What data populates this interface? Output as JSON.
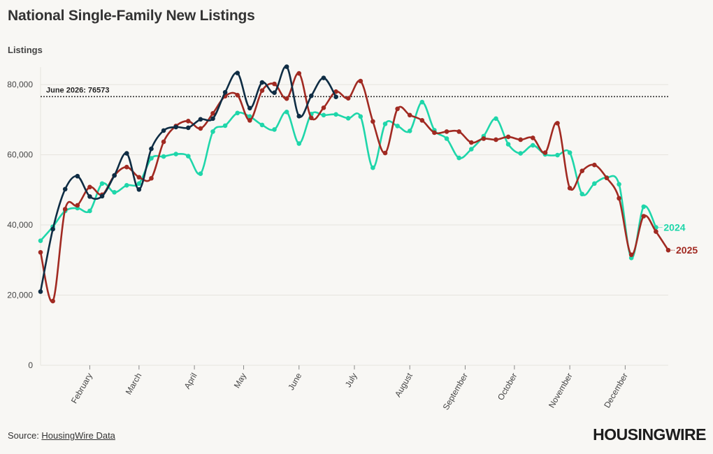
{
  "title": "National Single-Family New Listings",
  "source_prefix": "Source: ",
  "source_link": "HousingWire Data",
  "logo_text": "HOUSINGWIRE",
  "colors": {
    "s2024": "#1fd6aa",
    "s2025": "#a12a22",
    "s2026": "#0f2d44",
    "ref": "#333333",
    "grid": "#e6e4de"
  },
  "chart_data": {
    "type": "line",
    "title": "National Single-Family New Listings",
    "ylabel": "Listings",
    "xlabel": "",
    "ylim": [
      0,
      85000
    ],
    "y_ticks": [
      0,
      20000,
      40000,
      60000,
      80000
    ],
    "y_tick_labels": [
      "0",
      "20,000",
      "40,000",
      "60,000",
      "80,000"
    ],
    "x_range_weeks": [
      1,
      52
    ],
    "month_ticks": [
      {
        "label": "February",
        "week": 5
      },
      {
        "label": "March",
        "week": 9
      },
      {
        "label": "April",
        "week": 13.5
      },
      {
        "label": "May",
        "week": 17.5
      },
      {
        "label": "June",
        "week": 22
      },
      {
        "label": "July",
        "week": 26.5
      },
      {
        "label": "August",
        "week": 31
      },
      {
        "label": "September",
        "week": 35.5
      },
      {
        "label": "October",
        "week": 39.5
      },
      {
        "label": "November",
        "week": 44
      },
      {
        "label": "December",
        "week": 48.5
      }
    ],
    "reference_line": {
      "label": "June 2026: 76573",
      "value": 76573
    },
    "series": [
      {
        "name": "2024",
        "color_key": "s2024",
        "label": "2024",
        "values": [
          35500,
          39500,
          44000,
          44800,
          44000,
          51800,
          49300,
          51300,
          51800,
          59000,
          59500,
          60200,
          59600,
          54600,
          66600,
          68300,
          71900,
          70900,
          68500,
          67200,
          72200,
          63200,
          71600,
          71300,
          71500,
          70400,
          70900,
          56300,
          68800,
          68200,
          66800,
          75000,
          67000,
          64600,
          59100,
          61600,
          65300,
          70300,
          63000,
          60400,
          62700,
          60100,
          59900,
          60600,
          48800,
          51800,
          53500,
          51600,
          30600,
          45200,
          39300
        ],
        "x_start": 1
      },
      {
        "name": "2025",
        "color_key": "s2025",
        "label": "2025",
        "values": [
          32200,
          18300,
          44500,
          45600,
          50800,
          48600,
          54100,
          56500,
          53600,
          53300,
          63700,
          68200,
          69600,
          67500,
          71800,
          76700,
          77000,
          69800,
          78300,
          80200,
          76000,
          83200,
          70500,
          73400,
          78000,
          76100,
          81000,
          69500,
          60500,
          73100,
          71300,
          69800,
          66300,
          66600,
          66600,
          63500,
          64600,
          64300,
          65100,
          64300,
          64800,
          60600,
          69000,
          50500,
          55400,
          57100,
          53400,
          47600,
          31500,
          42500,
          38100,
          32800
        ],
        "x_start": 1
      },
      {
        "name": "2026",
        "color_key": "s2026",
        "values": [
          21000,
          38800,
          50200,
          53900,
          48100,
          48200,
          54100,
          60400,
          50100,
          61700,
          66900,
          67900,
          67700,
          70100,
          70300,
          77800,
          83300,
          73300,
          80600,
          77700,
          85100,
          71000,
          76800,
          81900,
          76500
        ],
        "x_start": 1
      }
    ]
  }
}
